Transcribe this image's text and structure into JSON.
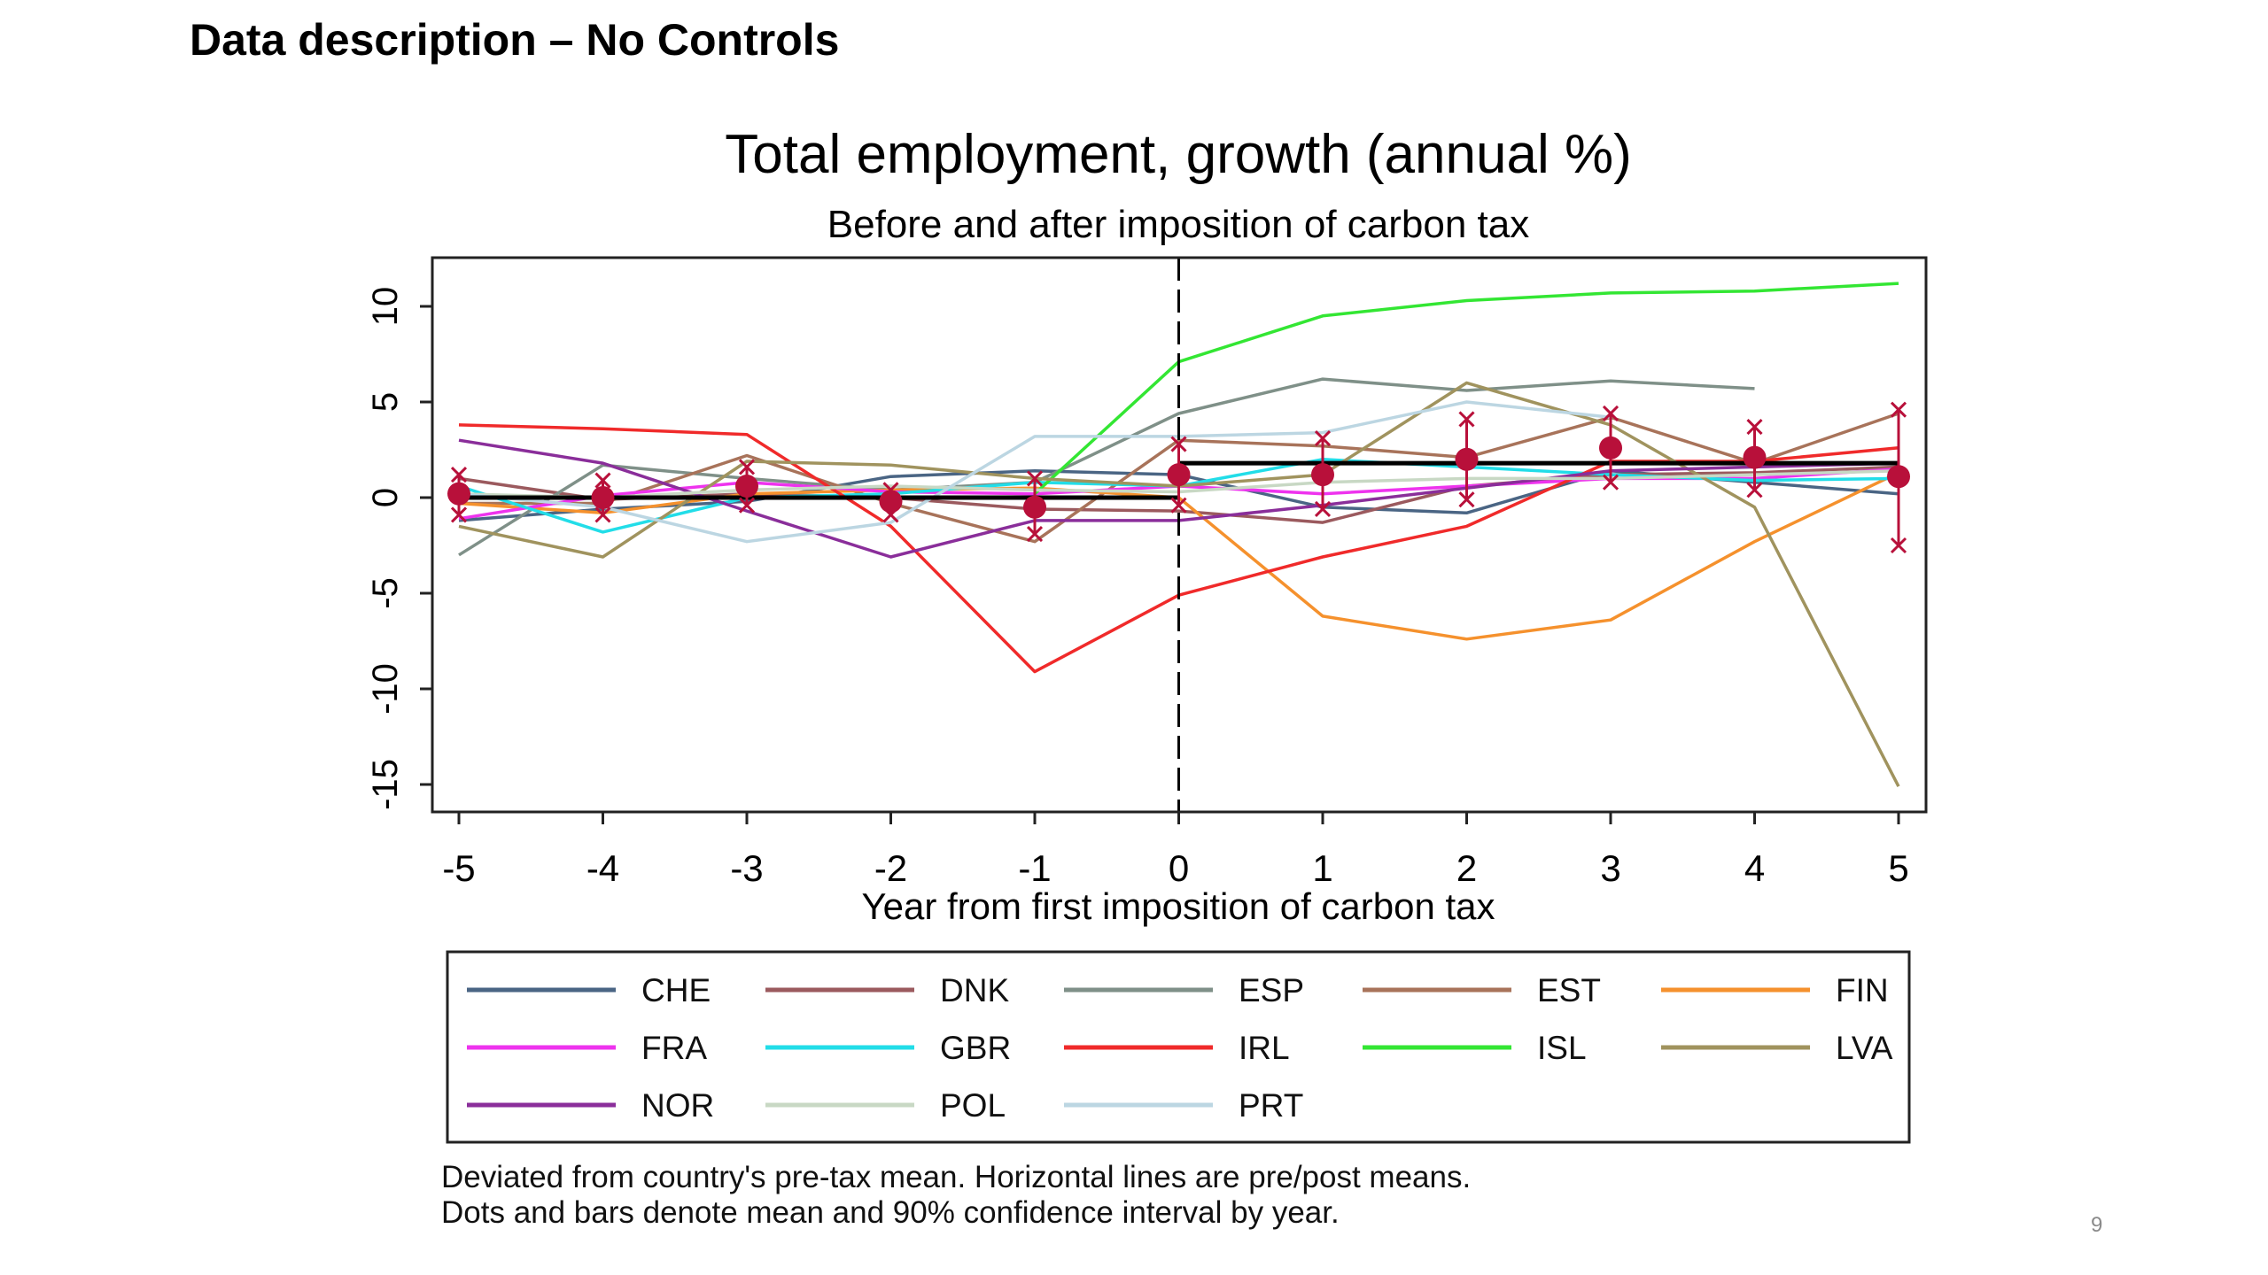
{
  "slide": {
    "title": "Data description – No Controls",
    "page_number": "9",
    "footnote_lines": [
      "Deviated from country's pre-tax mean. Horizontal lines are pre/post means.",
      "Dots and bars denote mean and 90% confidence interval by year."
    ]
  },
  "chart_data": {
    "type": "line",
    "title": "Total employment, growth (annual %)",
    "subtitle": "Before and after imposition of carbon tax",
    "xlabel": "Year from first imposition of carbon tax",
    "ylabel": "",
    "x": [
      -5,
      -4,
      -3,
      -2,
      -1,
      0,
      1,
      2,
      3,
      4,
      5
    ],
    "xlim": [
      -5,
      5
    ],
    "ylim": [
      -16.5,
      12.5
    ],
    "yticks": [
      10,
      5,
      0,
      -5,
      -10,
      -15
    ],
    "xticks": [
      -5,
      -4,
      -3,
      -2,
      -1,
      0,
      1,
      2,
      3,
      4,
      5
    ],
    "grid": false,
    "event_line_x": 0,
    "legend_position": "bottom",
    "legend_columns": 5,
    "series": [
      {
        "name": "CHE",
        "color": "#4a6584",
        "values": [
          -1.2,
          -0.6,
          -0.2,
          1.1,
          1.4,
          1.2,
          -0.5,
          -0.8,
          1.4,
          0.8,
          0.2
        ]
      },
      {
        "name": "DNK",
        "color": "#9b5a5e",
        "values": [
          1.0,
          -0.1,
          0.2,
          0.0,
          -0.6,
          -0.7,
          -1.3,
          0.6,
          1.2,
          1.3,
          1.6
        ]
      },
      {
        "name": "ESP",
        "color": "#7f9088",
        "values": [
          -3.0,
          1.7,
          1.0,
          0.4,
          0.8,
          4.4,
          6.2,
          5.6,
          6.1,
          5.7,
          null
        ]
      },
      {
        "name": "EST",
        "color": "#a8735a",
        "values": [
          -0.3,
          -0.3,
          2.2,
          -0.3,
          -2.3,
          3.0,
          2.7,
          2.1,
          4.2,
          1.8,
          4.4
        ]
      },
      {
        "name": "FIN",
        "color": "#f5912d",
        "values": [
          -0.3,
          -0.8,
          0.2,
          0.4,
          0.5,
          0.0,
          -6.2,
          -7.4,
          -6.4,
          -2.3,
          1.3
        ]
      },
      {
        "name": "FRA",
        "color": "#ee33ee",
        "values": [
          -1.1,
          0.1,
          0.8,
          0.3,
          0.2,
          0.6,
          0.2,
          0.6,
          1.0,
          1.0,
          1.5
        ]
      },
      {
        "name": "GBR",
        "color": "#22dde8",
        "values": [
          0.6,
          -1.8,
          0.0,
          0.2,
          0.8,
          0.6,
          2.0,
          1.6,
          1.2,
          0.9,
          1.0
        ]
      },
      {
        "name": "IRL",
        "color": "#f02a2a",
        "values": [
          3.8,
          3.6,
          3.3,
          -1.5,
          -9.1,
          -5.1,
          -3.1,
          -1.5,
          1.9,
          1.9,
          2.6
        ]
      },
      {
        "name": "ISL",
        "color": "#33e633",
        "values": [
          null,
          null,
          null,
          null,
          0.2,
          7.1,
          9.5,
          10.3,
          10.7,
          10.8,
          11.2
        ]
      },
      {
        "name": "LVA",
        "color": "#a0935e",
        "values": [
          -1.5,
          -3.1,
          1.9,
          1.7,
          1.0,
          0.6,
          1.2,
          6.0,
          3.8,
          -0.5,
          -15.1
        ]
      },
      {
        "name": "NOR",
        "color": "#8a2e9a",
        "values": [
          3.0,
          1.8,
          -0.7,
          -3.1,
          -1.2,
          -1.2,
          -0.4,
          0.5,
          1.4,
          1.6,
          1.8
        ]
      },
      {
        "name": "POL",
        "color": "#c8d8c4",
        "values": [
          0.2,
          0.0,
          0.4,
          0.6,
          0.4,
          0.3,
          0.8,
          1.0,
          1.0,
          1.2,
          1.4
        ]
      },
      {
        "name": "PRT",
        "color": "#bcd6e2",
        "values": [
          0.2,
          -0.5,
          -2.3,
          -1.3,
          3.2,
          3.2,
          3.4,
          5.0,
          4.2,
          null,
          null
        ]
      }
    ],
    "pre_mean": {
      "x_range": [
        -5,
        0
      ],
      "value": 0.0,
      "color": "#000000"
    },
    "post_mean": {
      "x_range": [
        0,
        5
      ],
      "value": 1.8,
      "color": "#000000"
    },
    "yearly_mean_ci": {
      "color": "#b8103a",
      "mean": [
        0.2,
        0.0,
        0.6,
        -0.2,
        -0.5,
        1.2,
        1.2,
        2.0,
        2.6,
        2.1,
        1.1
      ],
      "lower": [
        -0.9,
        -0.9,
        -0.4,
        -0.9,
        -1.9,
        -0.4,
        -0.6,
        -0.1,
        0.8,
        0.4,
        -2.5
      ],
      "upper": [
        1.2,
        0.9,
        1.6,
        0.4,
        1.0,
        2.8,
        3.1,
        4.1,
        4.4,
        3.7,
        4.6
      ]
    }
  }
}
